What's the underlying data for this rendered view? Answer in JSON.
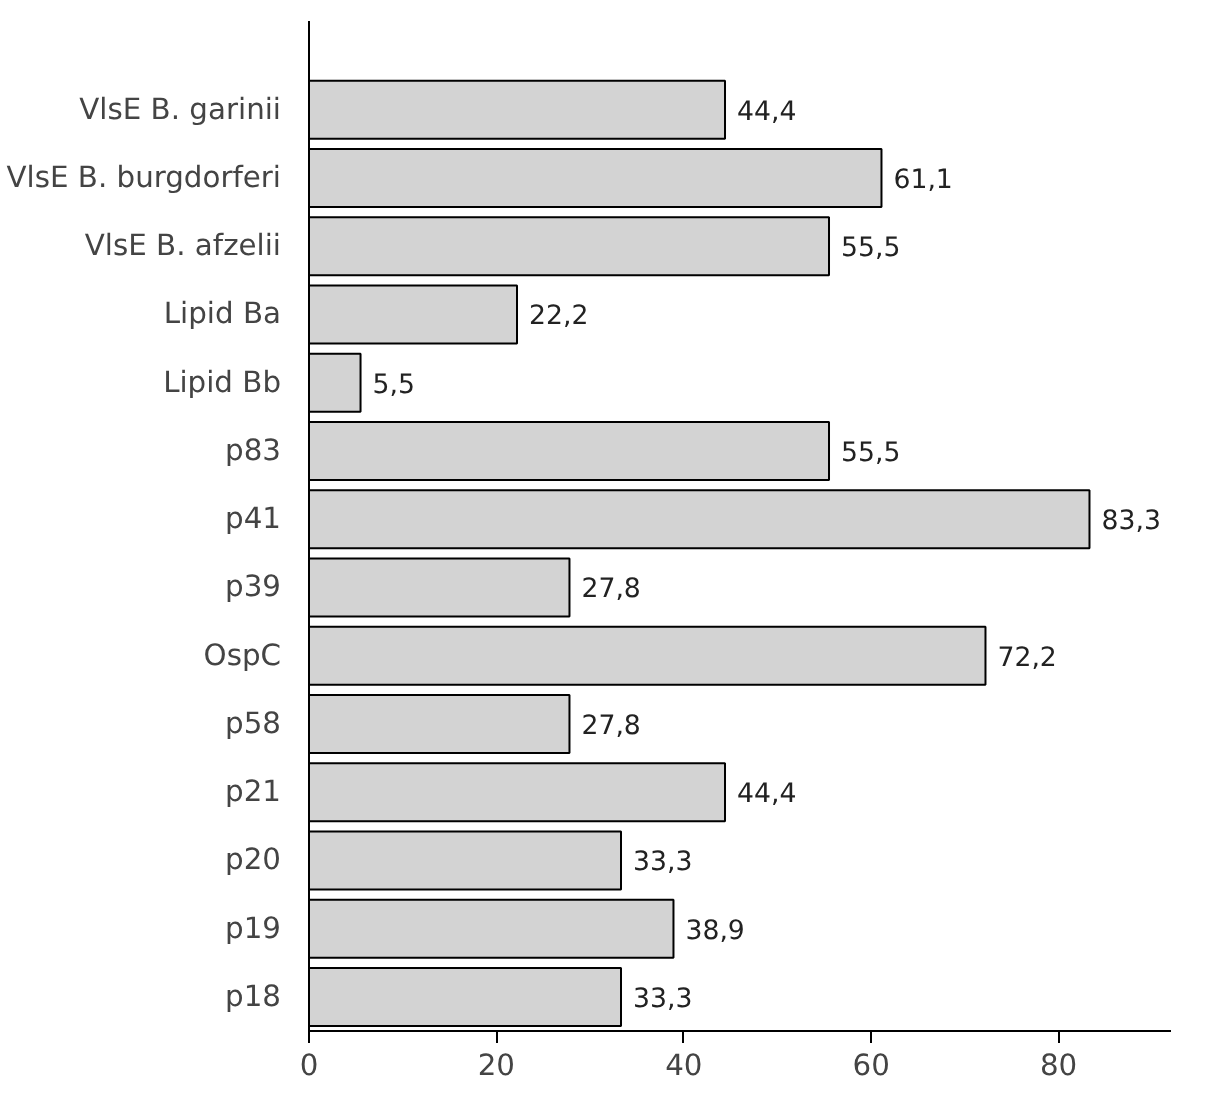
{
  "chart_data": {
    "type": "bar",
    "orientation": "horizontal",
    "categories": [
      "VlsE B. garinii",
      "VlsE B. burgdorferi",
      "VlsE B. afzelii",
      "Lipid Ba",
      "Lipid Bb",
      "p83",
      "p41",
      "p39",
      "OspC",
      "p58",
      "p21",
      "p20",
      "p19",
      "p18"
    ],
    "values": [
      44.4,
      61.1,
      55.5,
      22.2,
      5.5,
      55.5,
      83.3,
      27.8,
      72.2,
      27.8,
      44.4,
      33.3,
      38.9,
      33.3
    ],
    "value_labels": [
      "44,4",
      "61,1",
      "55,5",
      "22,2",
      "5,5",
      "55,5",
      "83,3",
      "27,8",
      "72,2",
      "27,8",
      "44,4",
      "33,3",
      "38,9",
      "33,3"
    ],
    "color": "#d3d3d3",
    "xlim": [
      0,
      92
    ],
    "xticks": [
      0,
      20,
      40,
      60,
      80
    ],
    "grid": false
  }
}
